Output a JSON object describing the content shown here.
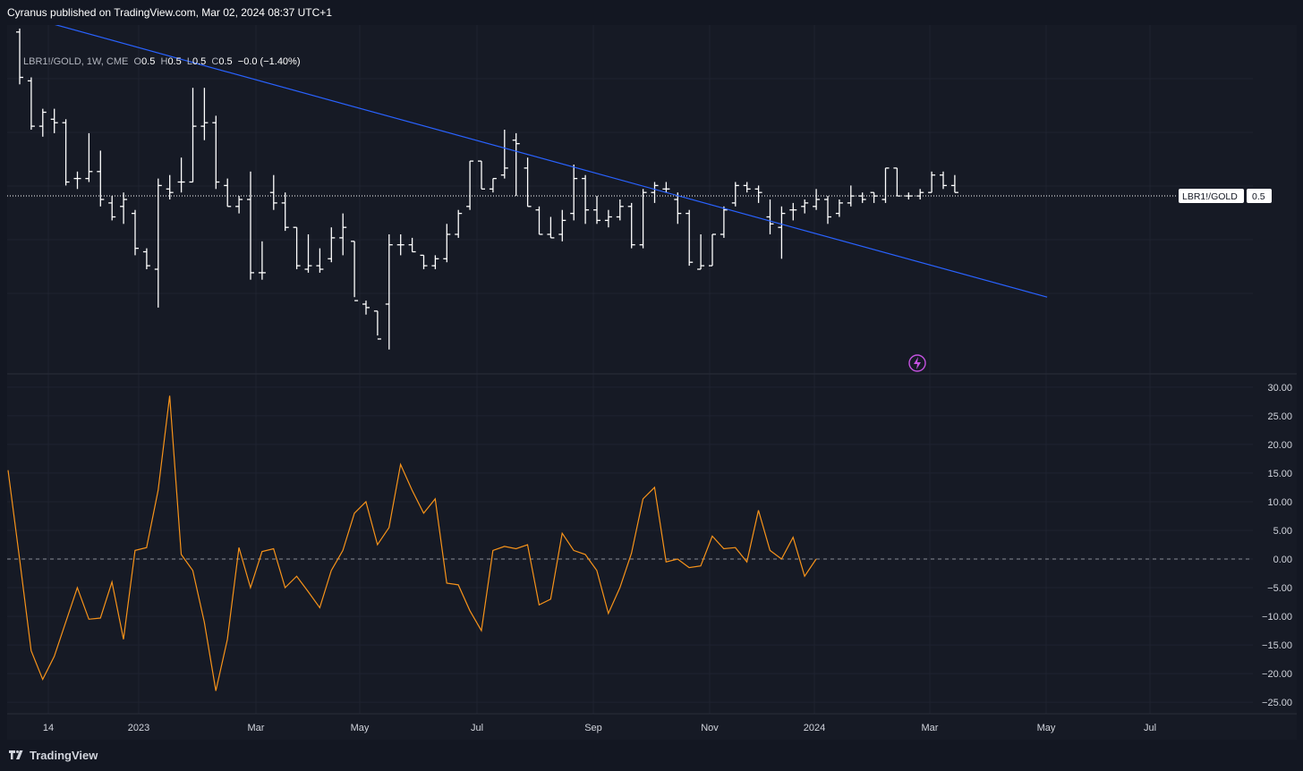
{
  "publish_text": "Cyranus published on TradingView.com, Mar 02, 2024 08:37 UTC+1",
  "legend": {
    "symbol": "LBR1!/GOLD, 1W, CME",
    "o_label": "O",
    "o_value": "0.5",
    "h_label": "H",
    "h_value": "0.5",
    "l_label": "L",
    "l_value": "0.5",
    "c_label": "C",
    "c_value": "0.5",
    "change": "−0.0 (−1.40%)"
  },
  "price_tag": {
    "label": "LBR1!/GOLD",
    "value": "0.5"
  },
  "footer": {
    "brand": "TradingView"
  },
  "colors": {
    "background": "#161a25",
    "grid": "#1f2330",
    "bars": "#ffffff",
    "trendline": "#2962ff",
    "oscillator": "#f7931a",
    "zero_line": "#8a8d96",
    "axis_text": "#d1d4dc",
    "alert_icon": "#c452e0"
  },
  "icons": {
    "alert": "lightning-bolt-icon",
    "logo": "tradingview-logo-icon"
  },
  "chart_data": [
    {
      "type": "ohlc",
      "symbol": "LBR1!/GOLD",
      "interval": "1W",
      "x_ticks": [
        "14",
        "2023",
        "Mar",
        "May",
        "Jul",
        "Sep",
        "Nov",
        "2024",
        "Mar",
        "May",
        "Jul"
      ],
      "price_scale": "hidden",
      "last_value": 0.5,
      "y_range_estimated": [
        0.38,
        0.56
      ],
      "series_relative": [
        [
          0.98,
          0.99,
          0.83,
          0.85
        ],
        [
          0.84,
          0.85,
          0.7,
          0.71
        ],
        [
          0.71,
          0.76,
          0.68,
          0.75
        ],
        [
          0.73,
          0.76,
          0.69,
          0.72
        ],
        [
          0.72,
          0.73,
          0.54,
          0.55
        ],
        [
          0.56,
          0.58,
          0.53,
          0.56
        ],
        [
          0.56,
          0.69,
          0.55,
          0.58
        ],
        [
          0.58,
          0.64,
          0.48,
          0.5
        ],
        [
          0.49,
          0.51,
          0.44,
          0.45
        ],
        [
          0.48,
          0.52,
          0.43,
          0.5
        ],
        [
          0.46,
          0.47,
          0.34,
          0.36
        ],
        [
          0.35,
          0.36,
          0.3,
          0.31
        ],
        [
          0.3,
          0.56,
          0.19,
          0.54
        ],
        [
          0.53,
          0.57,
          0.5,
          0.52
        ],
        [
          0.55,
          0.62,
          0.52,
          0.55
        ],
        [
          0.55,
          0.82,
          0.55,
          0.71
        ],
        [
          0.71,
          0.82,
          0.67,
          0.72
        ],
        [
          0.72,
          0.74,
          0.53,
          0.55
        ],
        [
          0.54,
          0.56,
          0.48,
          0.48
        ],
        [
          0.48,
          0.51,
          0.46,
          0.5
        ],
        [
          0.5,
          0.58,
          0.27,
          0.29
        ],
        [
          0.29,
          0.38,
          0.27,
          0.29
        ],
        [
          0.52,
          0.57,
          0.47,
          0.49
        ],
        [
          0.49,
          0.52,
          0.41,
          0.42
        ],
        [
          0.42,
          0.42,
          0.3,
          0.31
        ],
        [
          0.3,
          0.4,
          0.29,
          0.31
        ],
        [
          0.31,
          0.36,
          0.29,
          0.3
        ],
        [
          0.33,
          0.42,
          0.32,
          0.39
        ],
        [
          0.39,
          0.46,
          0.34,
          0.42
        ],
        [
          0.38,
          0.38,
          0.22,
          0.21
        ],
        [
          0.2,
          0.21,
          0.17,
          0.19
        ],
        [
          0.18,
          0.18,
          0.11,
          0.1
        ],
        [
          0.2,
          0.4,
          0.07,
          0.37
        ],
        [
          0.37,
          0.4,
          0.34,
          0.37
        ],
        [
          0.37,
          0.39,
          0.35,
          0.35
        ],
        [
          0.34,
          0.34,
          0.3,
          0.31
        ],
        [
          0.31,
          0.34,
          0.3,
          0.33
        ],
        [
          0.33,
          0.43,
          0.32,
          0.4
        ],
        [
          0.4,
          0.47,
          0.39,
          0.46
        ],
        [
          0.48,
          0.61,
          0.47,
          0.61
        ],
        [
          0.61,
          0.61,
          0.53,
          0.53
        ],
        [
          0.53,
          0.56,
          0.52,
          0.56
        ],
        [
          0.57,
          0.7,
          0.56,
          0.59
        ],
        [
          0.67,
          0.69,
          0.51,
          0.66
        ],
        [
          0.59,
          0.62,
          0.48,
          0.48
        ],
        [
          0.47,
          0.48,
          0.4,
          0.4
        ],
        [
          0.4,
          0.45,
          0.39,
          0.39
        ],
        [
          0.4,
          0.47,
          0.38,
          0.44
        ],
        [
          0.46,
          0.6,
          0.44,
          0.56
        ],
        [
          0.56,
          0.57,
          0.43,
          0.47
        ],
        [
          0.47,
          0.51,
          0.43,
          0.44
        ],
        [
          0.44,
          0.47,
          0.42,
          0.45
        ],
        [
          0.45,
          0.5,
          0.44,
          0.48
        ],
        [
          0.48,
          0.49,
          0.36,
          0.37
        ],
        [
          0.37,
          0.53,
          0.36,
          0.52
        ],
        [
          0.52,
          0.55,
          0.49,
          0.54
        ],
        [
          0.53,
          0.55,
          0.52,
          0.53
        ],
        [
          0.5,
          0.52,
          0.43,
          0.46
        ],
        [
          0.46,
          0.47,
          0.31,
          0.32
        ],
        [
          0.3,
          0.4,
          0.3,
          0.31
        ],
        [
          0.31,
          0.4,
          0.31,
          0.4
        ],
        [
          0.4,
          0.48,
          0.39,
          0.47
        ],
        [
          0.49,
          0.55,
          0.48,
          0.54
        ],
        [
          0.54,
          0.55,
          0.52,
          0.53
        ],
        [
          0.53,
          0.54,
          0.49,
          0.52
        ],
        [
          0.45,
          0.5,
          0.4,
          0.43
        ],
        [
          0.42,
          0.48,
          0.33,
          0.46
        ],
        [
          0.47,
          0.49,
          0.44,
          0.47
        ],
        [
          0.48,
          0.5,
          0.46,
          0.49
        ],
        [
          0.48,
          0.53,
          0.47,
          0.5
        ],
        [
          0.5,
          0.51,
          0.43,
          0.45
        ],
        [
          0.46,
          0.5,
          0.45,
          0.49
        ],
        [
          0.49,
          0.54,
          0.48,
          0.51
        ],
        [
          0.51,
          0.52,
          0.49,
          0.5
        ],
        [
          0.52,
          0.52,
          0.49,
          0.51
        ],
        [
          0.5,
          0.59,
          0.49,
          0.59
        ],
        [
          0.59,
          0.59,
          0.51,
          0.51
        ],
        [
          0.51,
          0.52,
          0.5,
          0.51
        ],
        [
          0.51,
          0.53,
          0.5,
          0.52
        ],
        [
          0.52,
          0.58,
          0.52,
          0.57
        ],
        [
          0.57,
          0.58,
          0.53,
          0.54
        ],
        [
          0.54,
          0.57,
          0.52,
          0.52
        ]
      ],
      "trendline_relative": {
        "from": [
          -10,
          1.12
        ],
        "to": [
          89,
          0.22
        ]
      }
    },
    {
      "type": "line",
      "y_ticks": [
        30,
        25,
        20,
        15,
        10,
        5,
        0,
        -5,
        -10,
        -15,
        -20,
        -25
      ],
      "y_tick_labels": [
        "30.00",
        "25.00",
        "20.00",
        "15.00",
        "10.00",
        "5.00",
        "0.00",
        "−5.00",
        "−10.00",
        "−15.00",
        "−20.00",
        "−25.00"
      ],
      "ylim": [
        -27,
        32
      ],
      "zero_line": "dashed",
      "values": [
        15.5,
        0.0,
        -16.0,
        -21.0,
        -17.0,
        -11.0,
        -5.0,
        -10.5,
        -10.3,
        -4.0,
        -14.0,
        1.5,
        2.0,
        12.0,
        28.5,
        0.8,
        -2.0,
        -11.0,
        -23.0,
        -14.0,
        2.0,
        -5.0,
        1.3,
        1.8,
        -5.0,
        -3.0,
        -5.7,
        -8.5,
        -2.0,
        1.5,
        8.0,
        10.0,
        2.5,
        5.5,
        16.5,
        12.0,
        8.0,
        10.5,
        -4.2,
        -4.5,
        -9.0,
        -12.5,
        1.5,
        2.2,
        1.8,
        2.5,
        -8.0,
        -7.0,
        4.5,
        1.5,
        0.8,
        -2.0,
        -9.5,
        -5.0,
        1.0,
        10.5,
        12.5,
        -0.5,
        0.0,
        -1.5,
        -1.2,
        4.0,
        1.8,
        2.0,
        -0.5,
        8.5,
        1.5,
        0.0,
        3.8,
        -3.0,
        0.0
      ]
    }
  ]
}
